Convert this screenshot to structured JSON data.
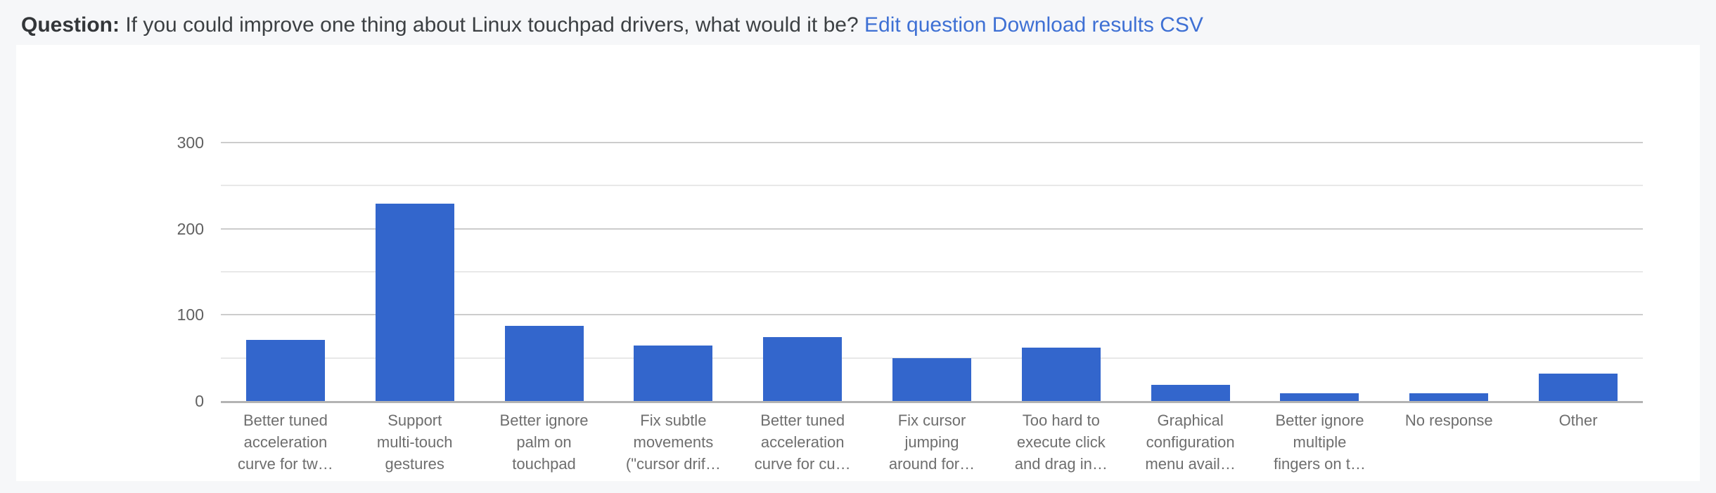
{
  "page": {
    "background_color": "#f6f7f9",
    "card_color": "#ffffff"
  },
  "header": {
    "label": "Question:",
    "question": "If you could improve one thing about Linux touchpad drivers, what would it be?",
    "links": [
      {
        "label": "Edit question"
      },
      {
        "label": "Download results CSV"
      }
    ],
    "link_color": "#3e70d4",
    "text_color": "#3c4043"
  },
  "chart_data": {
    "type": "bar",
    "title": "",
    "xlabel": "",
    "ylabel": "",
    "ylim": [
      0,
      300
    ],
    "yticks": [
      0,
      100,
      200,
      300
    ],
    "minor_gridline_step": 50,
    "grid": "on",
    "legend": "none",
    "bar_color": "#3366cc",
    "major_gridline_color": "#cccccc",
    "minor_gridline_color": "#e8e8e8",
    "baseline_color": "#b3b3b3",
    "categories": [
      "Better tuned acceleration curve for tw…",
      "Support multi-touch gestures",
      "Better ignore palm on touchpad",
      "Fix subtle movements (\"cursor drif…",
      "Better tuned acceleration curve for cu…",
      "Fix cursor jumping around for…",
      "Too hard to execute click and drag in…",
      "Graphical configuration menu avail…",
      "Better ignore multiple fingers on t…",
      "No response",
      "Other"
    ],
    "category_label_lines": [
      [
        "Better tuned",
        "acceleration",
        "curve for tw…"
      ],
      [
        "Support",
        "multi-touch",
        "gestures"
      ],
      [
        "Better ignore",
        "palm on",
        "touchpad"
      ],
      [
        "Fix subtle",
        "movements",
        "(\"cursor drif…"
      ],
      [
        "Better tuned",
        "acceleration",
        "curve for cu…"
      ],
      [
        "Fix cursor",
        "jumping",
        "around for…"
      ],
      [
        "Too hard to",
        "execute click",
        "and drag in…"
      ],
      [
        "Graphical",
        "configuration",
        "menu avail…"
      ],
      [
        "Better ignore",
        "multiple",
        "fingers on t…"
      ],
      [
        "No response"
      ],
      [
        "Other"
      ]
    ],
    "values": [
      71,
      229,
      87,
      64,
      74,
      50,
      62,
      19,
      9,
      9,
      32
    ]
  }
}
